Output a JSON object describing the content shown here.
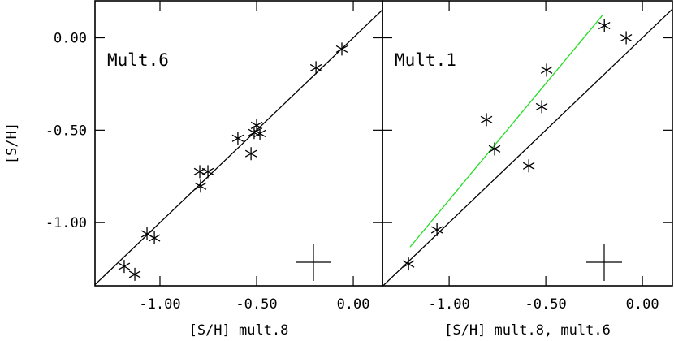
{
  "chart_data": [
    {
      "type": "scatter",
      "title": "Mult.6",
      "xlabel": "[S/H]  mult.8",
      "ylabel": "[S/H]",
      "xlim": [
        -1.336,
        0.151
      ],
      "ylim": [
        -1.342,
        0.2
      ],
      "xticks": [
        {
          "value": -1.0,
          "label": "-1.00"
        },
        {
          "value": -0.5,
          "label": "-0.50"
        },
        {
          "value": 0,
          "label": "0.00"
        }
      ],
      "yticks": [
        {
          "value": 0,
          "label": "0.00"
        },
        {
          "value": -0.5,
          "label": "-0.50"
        },
        {
          "value": -1.0,
          "label": "-1.00"
        }
      ],
      "color": "#000000",
      "x": [
        -1.185,
        -1.13,
        -1.067,
        -1.029,
        -0.794,
        -0.752,
        -0.79,
        -0.597,
        -0.529,
        -0.5,
        -0.513,
        -0.483,
        -0.193,
        -0.059
      ],
      "values": [
        -1.237,
        -1.28,
        -1.061,
        -1.083,
        -0.724,
        -0.724,
        -0.803,
        -0.544,
        -0.627,
        -0.474,
        -0.513,
        -0.518,
        -0.162,
        -0.061
      ],
      "lines": [
        {
          "color": "#000000",
          "x": [
            -1.342,
            0.151
          ],
          "y": [
            -1.342,
            0.151
          ]
        }
      ]
    },
    {
      "type": "scatter",
      "title": "Mult.1",
      "xlabel": "[S/H]  mult.8,  mult.6",
      "xlim": [
        -1.345,
        0.155
      ],
      "ylim": [
        -1.342,
        0.2
      ],
      "xticks": [
        {
          "value": -1.0,
          "label": "-1.00"
        },
        {
          "value": -0.5,
          "label": "-0.50"
        },
        {
          "value": 0,
          "label": "0.00"
        }
      ],
      "yticks": [
        0,
        -0.5,
        -1
      ],
      "color": "#000000",
      "x": [
        -1.21,
        -1.063,
        -0.807,
        -0.765,
        -0.588,
        -0.521,
        -0.496,
        -0.197,
        -0.084
      ],
      "values": [
        -1.224,
        -1.039,
        -0.443,
        -0.601,
        -0.693,
        -0.373,
        -0.175,
        0.066,
        0.0
      ],
      "lines": [
        {
          "color": "#000000",
          "x": [
            -1.342,
            0.155
          ],
          "y": [
            -1.342,
            0.155
          ]
        },
        {
          "color": "#22dd22",
          "x": [
            -1.202,
            -0.206
          ],
          "y": [
            -1.132,
            0.123
          ]
        }
      ]
    }
  ]
}
